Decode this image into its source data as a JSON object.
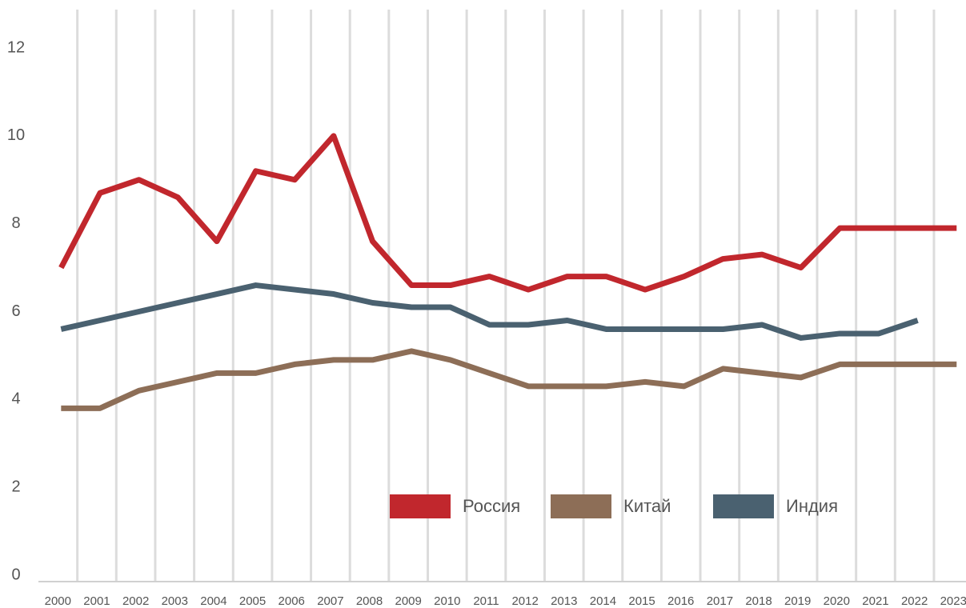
{
  "chart_data": {
    "type": "line",
    "categories": [
      "2000",
      "2001",
      "2002",
      "2003",
      "2004",
      "2005",
      "2006",
      "2007",
      "2008",
      "2009",
      "2010",
      "2011",
      "2012",
      "2013",
      "2014",
      "2015",
      "2016",
      "2017",
      "2018",
      "2019",
      "2020",
      "2021",
      "2022",
      "2023"
    ],
    "series": [
      {
        "name": "Россия",
        "color": "#c1272d",
        "values": [
          7.0,
          8.7,
          9.0,
          8.6,
          7.6,
          9.2,
          9.0,
          10.0,
          7.6,
          6.6,
          6.6,
          6.8,
          6.5,
          6.8,
          6.8,
          6.5,
          6.8,
          7.2,
          7.3,
          7.0,
          7.9,
          7.9,
          7.9,
          7.9
        ]
      },
      {
        "name": "Китай",
        "color": "#8d6e57",
        "values": [
          3.8,
          3.8,
          4.2,
          4.4,
          4.6,
          4.6,
          4.8,
          4.9,
          4.9,
          5.1,
          4.9,
          4.6,
          4.3,
          4.3,
          4.3,
          4.4,
          4.3,
          4.7,
          4.6,
          4.5,
          4.8,
          4.8,
          4.8,
          4.8
        ]
      },
      {
        "name": "Индия",
        "color": "#4a6170",
        "values": [
          5.6,
          5.8,
          6.0,
          6.2,
          6.4,
          6.6,
          6.5,
          6.4,
          6.2,
          6.1,
          6.1,
          5.7,
          5.7,
          5.8,
          5.6,
          5.6,
          5.6,
          5.6,
          5.7,
          5.4,
          5.5,
          5.5,
          5.8,
          null
        ]
      }
    ],
    "ylim": [
      0,
      12
    ],
    "yticks": [
      0,
      2,
      4,
      6,
      8,
      10,
      12
    ],
    "grid": true,
    "legend": "bottom"
  }
}
